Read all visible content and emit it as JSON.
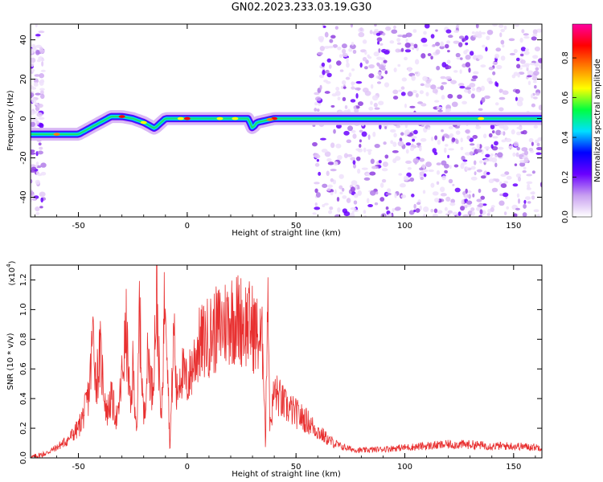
{
  "figure": {
    "title": "GN02.2023.233.03.19.G30"
  },
  "chart_data": [
    {
      "type": "heatmap",
      "title": "",
      "xlabel": "Height of straight line (km)",
      "ylabel": "Frequency (Hz)",
      "xlim": [
        -72,
        163
      ],
      "ylim": [
        -50,
        48
      ],
      "x_ticks": [
        -50,
        0,
        50,
        100,
        150
      ],
      "y_ticks": [
        -40,
        -20,
        0,
        20,
        40
      ],
      "colorbar": {
        "label": "Normalized spectral amplitude",
        "range": [
          0,
          0.97
        ],
        "ticks": [
          0.0,
          0.2,
          0.4,
          0.6,
          0.8
        ],
        "colormap": [
          "#ffffff",
          "#c8a0f0",
          "#6a00ff",
          "#0000ff",
          "#00e0ff",
          "#00ff40",
          "#ffff00",
          "#ff8000",
          "#ff0000",
          "#ff00a0"
        ]
      },
      "ridge": {
        "x": [
          -72,
          -60,
          -55,
          -50,
          -45,
          -40,
          -35,
          -30,
          -25,
          -20,
          -15,
          -10,
          -5,
          0,
          10,
          20,
          28,
          30,
          32,
          40,
          60,
          80,
          100,
          120,
          140,
          163
        ],
        "frequency": [
          -8,
          -8,
          -8,
          -8,
          -5,
          -2,
          1,
          1,
          0,
          -2,
          -5,
          0,
          0,
          0,
          0,
          0,
          0,
          -5,
          -2,
          0,
          0,
          0,
          0,
          0,
          0,
          0
        ]
      }
    },
    {
      "type": "line",
      "title": "",
      "xlabel": "Height of straight line (km)",
      "ylabel": "SNR (10 * v/v)",
      "ylabel_multiplier": "(x10",
      "ylabel_multiplier_exponent": "4",
      "ylabel_multiplier_close": ")",
      "xlim": [
        -72,
        163
      ],
      "ylim": [
        0,
        1.3
      ],
      "x_ticks": [
        -50,
        0,
        50,
        100,
        150
      ],
      "y_ticks": [
        0.0,
        0.2,
        0.4,
        0.6,
        0.8,
        1.0,
        1.2
      ],
      "series": [
        {
          "color": "#e83030",
          "x": [
            -72,
            -65,
            -60,
            -55,
            -50,
            -47,
            -45,
            -43,
            -42,
            -40,
            -37,
            -35,
            -32,
            -30,
            -28,
            -26,
            -25,
            -23,
            -22,
            -20,
            -18,
            -16,
            -14,
            -12,
            -10,
            -9,
            -8,
            -6,
            -5,
            -3,
            0,
            5,
            10,
            15,
            20,
            25,
            30,
            33,
            35,
            36,
            37,
            38,
            40,
            45,
            50,
            55,
            60,
            65,
            70,
            75,
            80,
            90,
            100,
            110,
            120,
            130,
            140,
            150,
            163
          ],
          "values": [
            0.0,
            0.03,
            0.07,
            0.12,
            0.2,
            0.32,
            0.45,
            0.9,
            0.5,
            0.7,
            0.3,
            0.4,
            0.25,
            0.55,
            0.85,
            0.3,
            0.6,
            0.15,
            1.0,
            0.25,
            0.7,
            0.45,
            1.1,
            0.2,
            1.28,
            0.7,
            0.05,
            0.9,
            0.4,
            0.6,
            0.5,
            0.75,
            0.82,
            0.88,
            0.95,
            0.93,
            0.88,
            0.8,
            0.75,
            0.05,
            1.3,
            0.2,
            0.45,
            0.35,
            0.3,
            0.25,
            0.18,
            0.12,
            0.08,
            0.06,
            0.05,
            0.06,
            0.07,
            0.08,
            0.09,
            0.09,
            0.08,
            0.08,
            0.07
          ]
        }
      ]
    }
  ]
}
